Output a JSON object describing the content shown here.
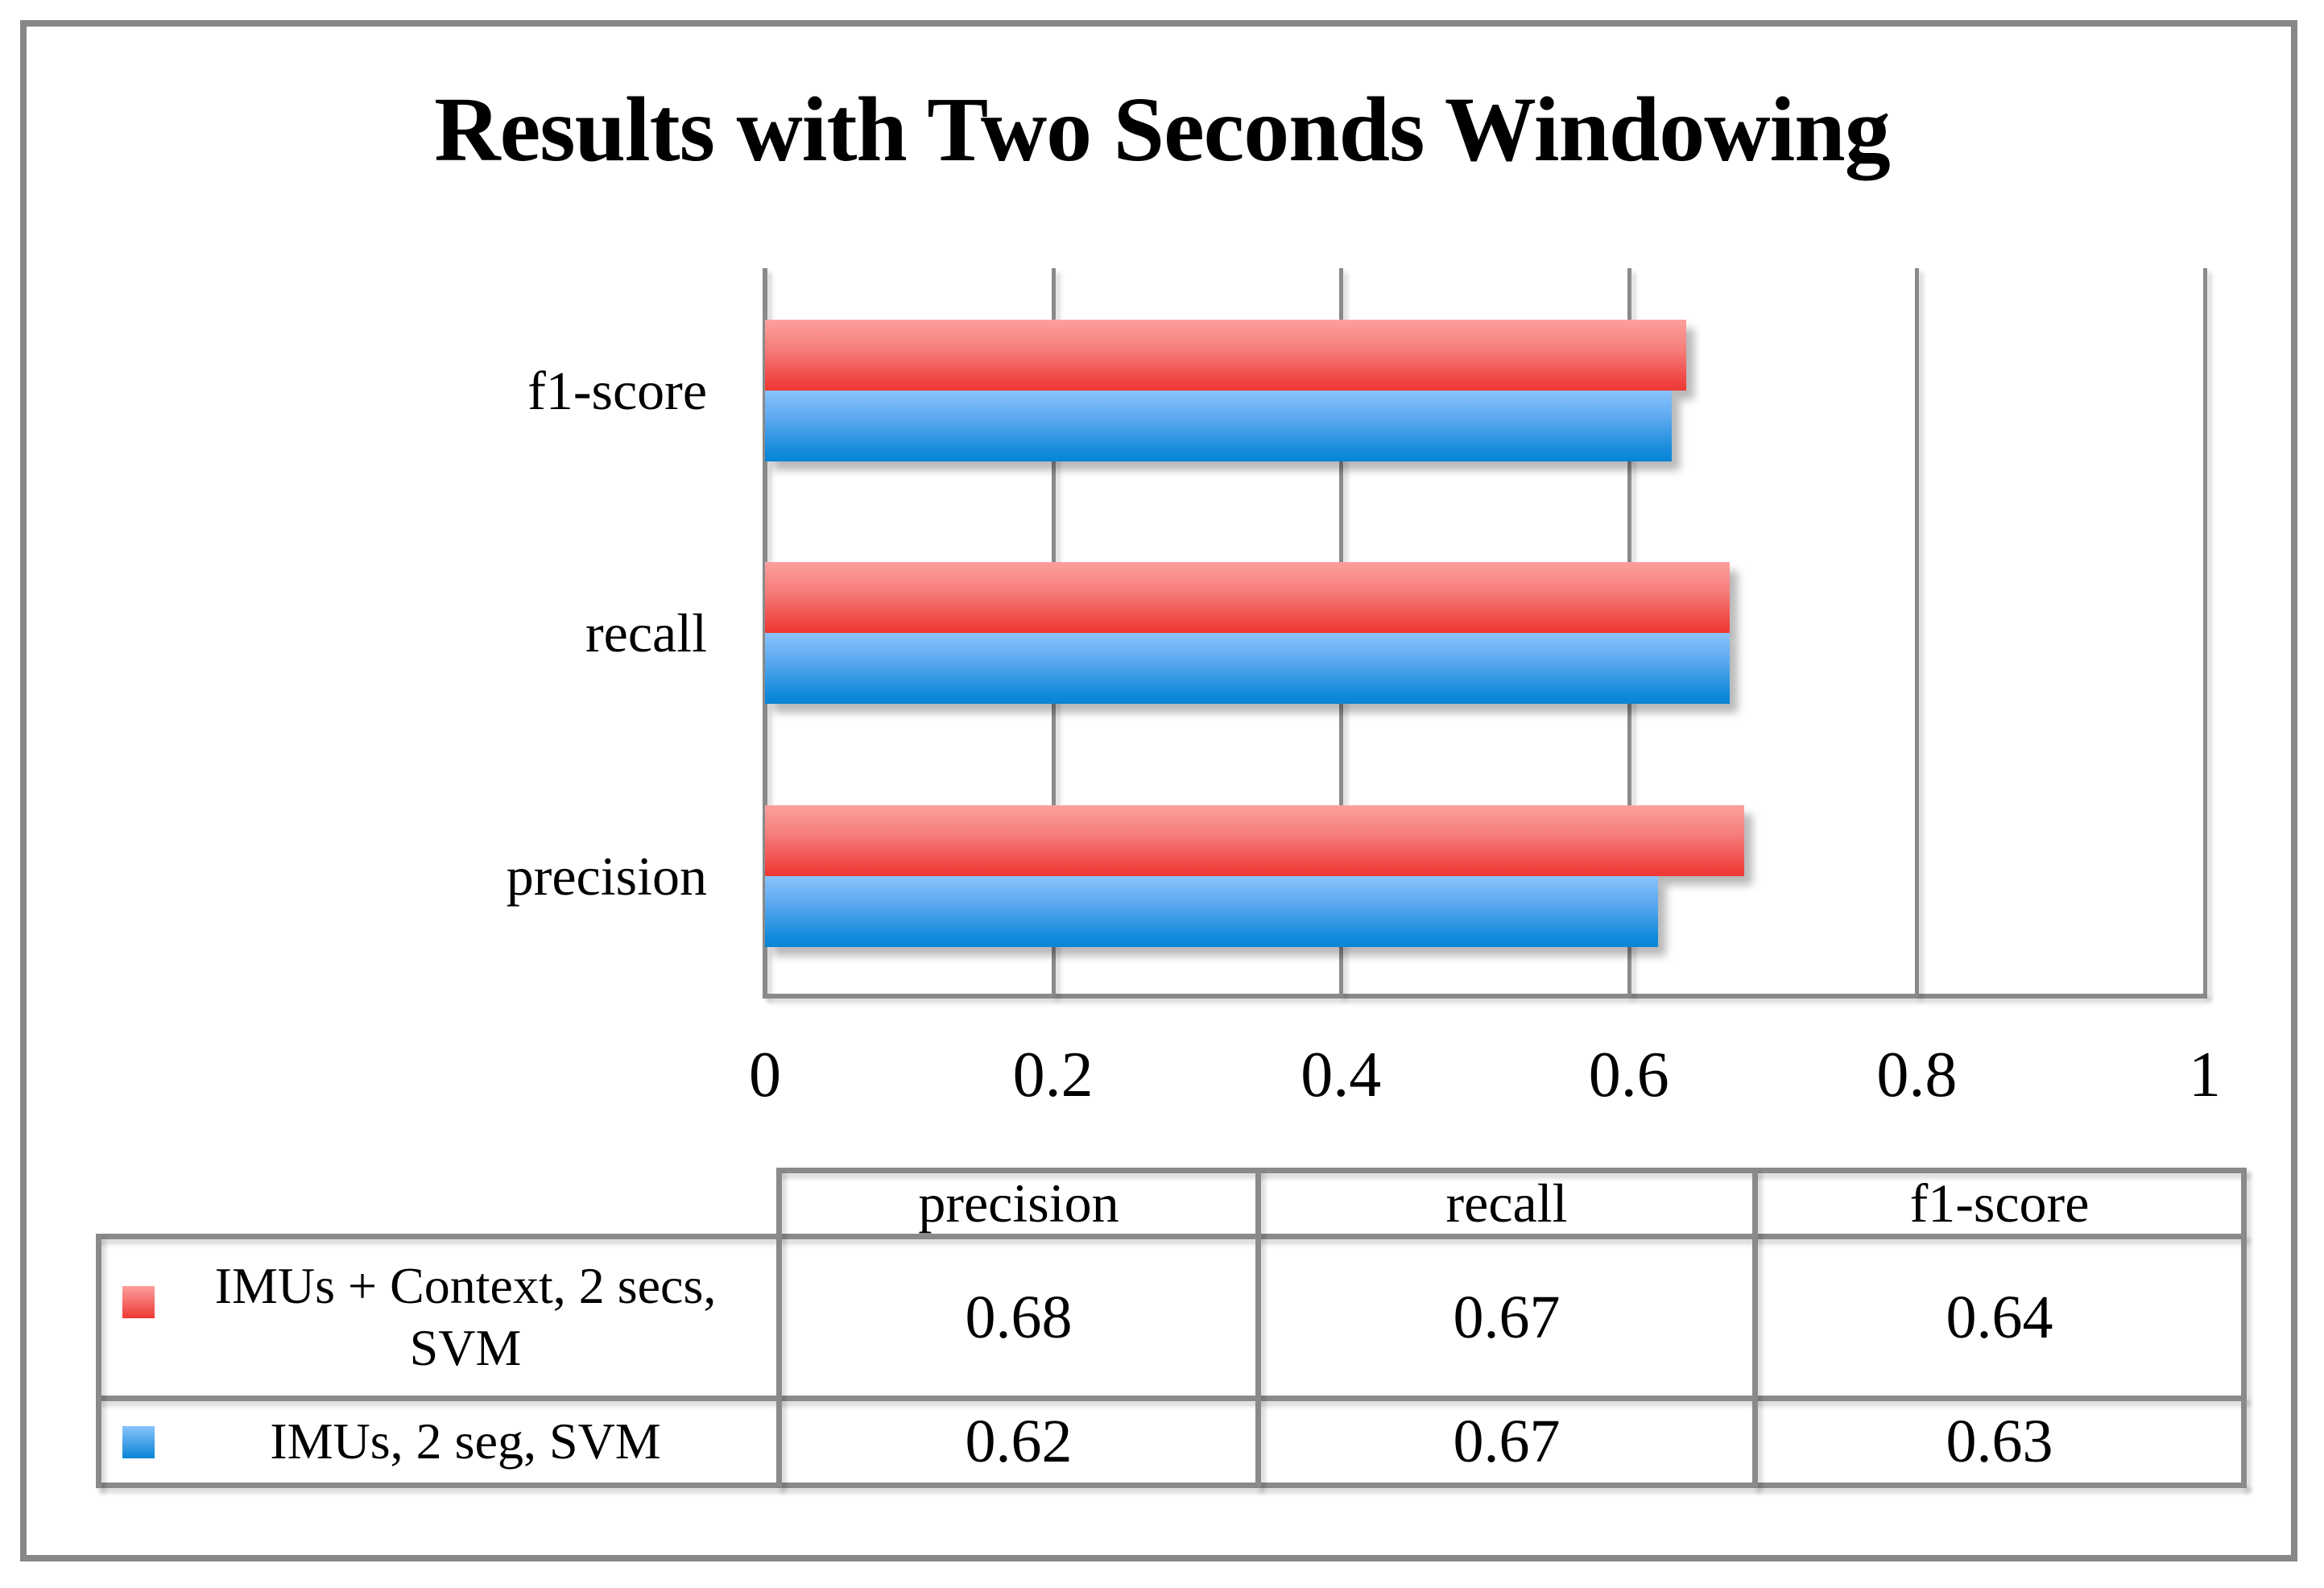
{
  "title": "Results with Two Seconds Windowing",
  "chart_data": {
    "type": "bar",
    "orientation": "horizontal",
    "title": "Results with Two Seconds Windowing",
    "categories": [
      "f1-score",
      "recall",
      "precision"
    ],
    "series": [
      {
        "name": "IMUs + Context, 2 secs, SVM",
        "color": "#ee3834",
        "values": [
          0.64,
          0.67,
          0.68
        ]
      },
      {
        "name": "IMUs, 2 seg, SVM",
        "color": "#0984d6",
        "values": [
          0.63,
          0.67,
          0.62
        ]
      }
    ],
    "xlim": [
      0,
      1
    ],
    "x_ticks": [
      {
        "label": "0",
        "value": 0
      },
      {
        "label": "0.2",
        "value": 0.2
      },
      {
        "label": "0.4",
        "value": 0.4
      },
      {
        "label": "0.6",
        "value": 0.6
      },
      {
        "label": "0.8",
        "value": 0.8
      },
      {
        "label": "1",
        "value": 1
      }
    ],
    "grid": "vertical",
    "legend_position": "data-table-below"
  },
  "table": {
    "headers": [
      "precision",
      "recall",
      "f1-score"
    ],
    "rows": [
      {
        "label": "IMUs + Context, 2 secs, SVM",
        "series_color": "#ee3834",
        "values": [
          "0.68",
          "0.67",
          "0.64"
        ]
      },
      {
        "label": "IMUs, 2 seg, SVM",
        "series_color": "#0984d6",
        "values": [
          "0.62",
          "0.67",
          "0.63"
        ]
      }
    ]
  }
}
